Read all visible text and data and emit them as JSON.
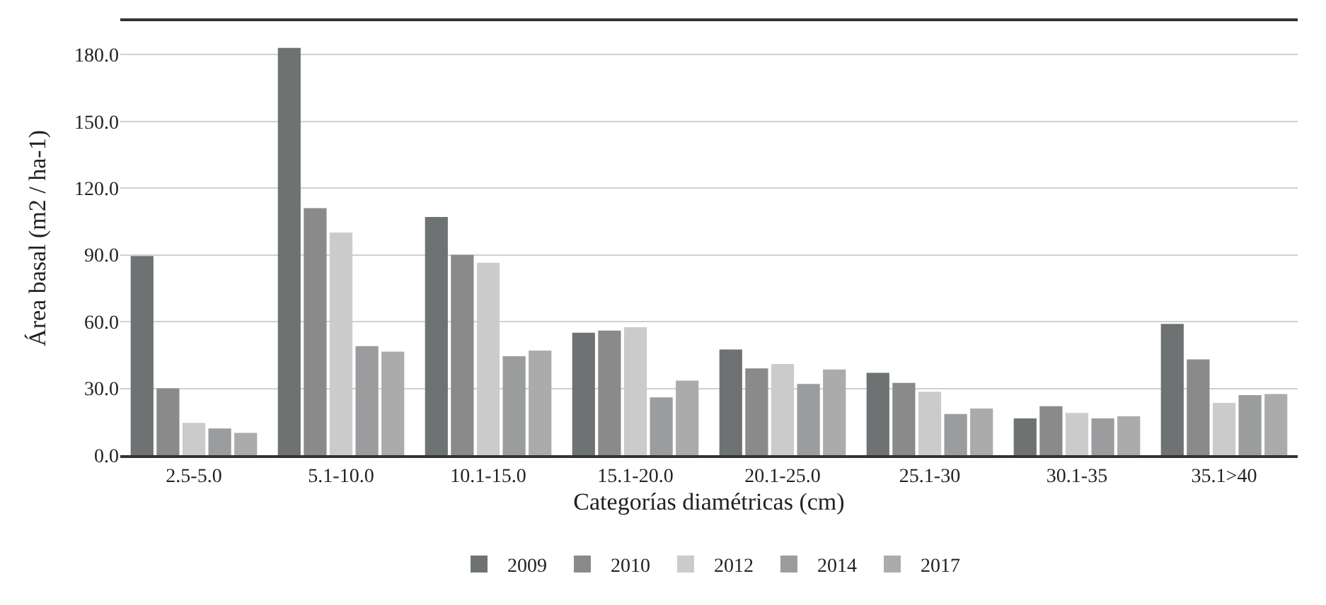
{
  "chart_data": {
    "type": "bar",
    "xlabel": "Categorías diamétricas (cm)",
    "ylabel": "Área basal (m2 / ha-1)",
    "categories": [
      "2.5-5.0",
      "5.1-10.0",
      "10.1-15.0",
      "15.1-20.0",
      "20.1-25.0",
      "25.1-30",
      "30.1-35",
      "35.1>40"
    ],
    "series": [
      {
        "name": "2009",
        "color": "#6f7273",
        "values": [
          89.5,
          183,
          107,
          55,
          47.5,
          37,
          16.5,
          59
        ]
      },
      {
        "name": "2010",
        "color": "#8a8a8a",
        "values": [
          30,
          111,
          90,
          56,
          39,
          32.5,
          22,
          43
        ]
      },
      {
        "name": "2012",
        "color": "#cbcbcb",
        "values": [
          14.5,
          100,
          86.5,
          57.5,
          41,
          28.5,
          19,
          23.5
        ]
      },
      {
        "name": "2014",
        "color": "#9a9c9d",
        "values": [
          12,
          49,
          44.5,
          26,
          32,
          18.5,
          16.5,
          27
        ]
      },
      {
        "name": "2017",
        "color": "#ababab",
        "values": [
          10,
          46.5,
          47,
          33.5,
          38.5,
          21,
          17.5,
          27.5
        ]
      }
    ],
    "ylim": [
      0,
      195
    ],
    "yticks": [
      {
        "value": 0,
        "label": "0.0"
      },
      {
        "value": 30,
        "label": "30.0"
      },
      {
        "value": 60,
        "label": "60.0"
      },
      {
        "value": 90,
        "label": "90.0"
      },
      {
        "value": 120,
        "label": "120.0"
      },
      {
        "value": 150,
        "label": "150.0"
      },
      {
        "value": 180,
        "label": "180.0"
      }
    ],
    "grid": "y",
    "legend": "bottom"
  }
}
